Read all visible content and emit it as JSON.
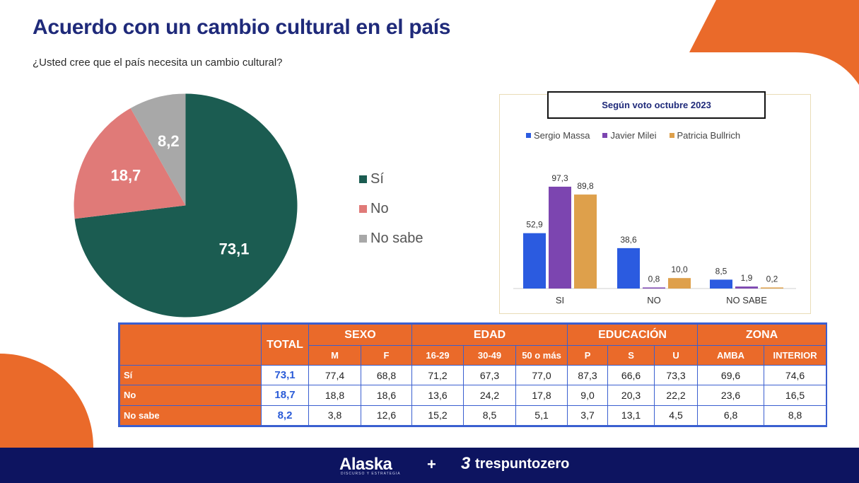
{
  "title": "Acuerdo con un cambio cultural en el país",
  "subtitle": "¿Usted cree que el país necesita un cambio cultural?",
  "colors": {
    "si": "#1b5c51",
    "no": "#e07a78",
    "nosabe": "#a8a8a8",
    "massa": "#2b5be0",
    "milei": "#7c45b0",
    "bullrich": "#dea04b",
    "accent": "#ea6a2a",
    "navy": "#0d1460"
  },
  "chart_data": [
    {
      "type": "pie",
      "title": "¿Usted cree que el país necesita un cambio cultural?",
      "slices": [
        {
          "label": "Sí",
          "value": 73.1,
          "display": "73,1"
        },
        {
          "label": "No",
          "value": 18.7,
          "display": "18,7"
        },
        {
          "label": "No sabe",
          "value": 8.2,
          "display": "8,2"
        }
      ]
    },
    {
      "type": "bar",
      "title": "Según voto octubre 2023",
      "categories": [
        "SI",
        "NO",
        "NO SABE"
      ],
      "series": [
        {
          "name": "Sergio Massa",
          "values": [
            52.9,
            38.6,
            8.5
          ],
          "labels": [
            "52,9",
            "38,6",
            "8,5"
          ]
        },
        {
          "name": "Javier Milei",
          "values": [
            97.3,
            0.8,
            1.9
          ],
          "labels": [
            "97,3",
            "0,8",
            "1,9"
          ]
        },
        {
          "name": "Patricia Bullrich",
          "values": [
            89.8,
            10.0,
            0.2
          ],
          "labels": [
            "89,8",
            "10,0",
            "0,2"
          ]
        }
      ],
      "ylim": [
        0,
        100
      ]
    },
    {
      "type": "table",
      "total_header": "TOTAL",
      "groups": [
        {
          "name": "SEXO",
          "cols": [
            "M",
            "F"
          ]
        },
        {
          "name": "EDAD",
          "cols": [
            "16-29",
            "30-49",
            "50 o más"
          ]
        },
        {
          "name": "EDUCACIÓN",
          "cols": [
            "P",
            "S",
            "U"
          ]
        },
        {
          "name": "ZONA",
          "cols": [
            "AMBA",
            "INTERIOR"
          ]
        }
      ],
      "rows": [
        {
          "label": "Sí",
          "total": "73,1",
          "values": [
            "77,4",
            "68,8",
            "71,2",
            "67,3",
            "77,0",
            "87,3",
            "66,6",
            "73,3",
            "69,6",
            "74,6"
          ]
        },
        {
          "label": "No",
          "total": "18,7",
          "values": [
            "18,8",
            "18,6",
            "13,6",
            "24,2",
            "17,8",
            "9,0",
            "20,3",
            "22,2",
            "23,6",
            "16,5"
          ]
        },
        {
          "label": "No sabe",
          "total": "8,2",
          "values": [
            "3,8",
            "12,6",
            "15,2",
            "8,5",
            "5,1",
            "3,7",
            "13,1",
            "4,5",
            "6,8",
            "8,8"
          ]
        }
      ]
    }
  ],
  "footer": {
    "brand1": "Alaska",
    "brand1_sub": "DISCURSO Y ESTRATEGIA",
    "plus": "+",
    "brand2_icon": "3",
    "brand2": "trespuntozero"
  }
}
